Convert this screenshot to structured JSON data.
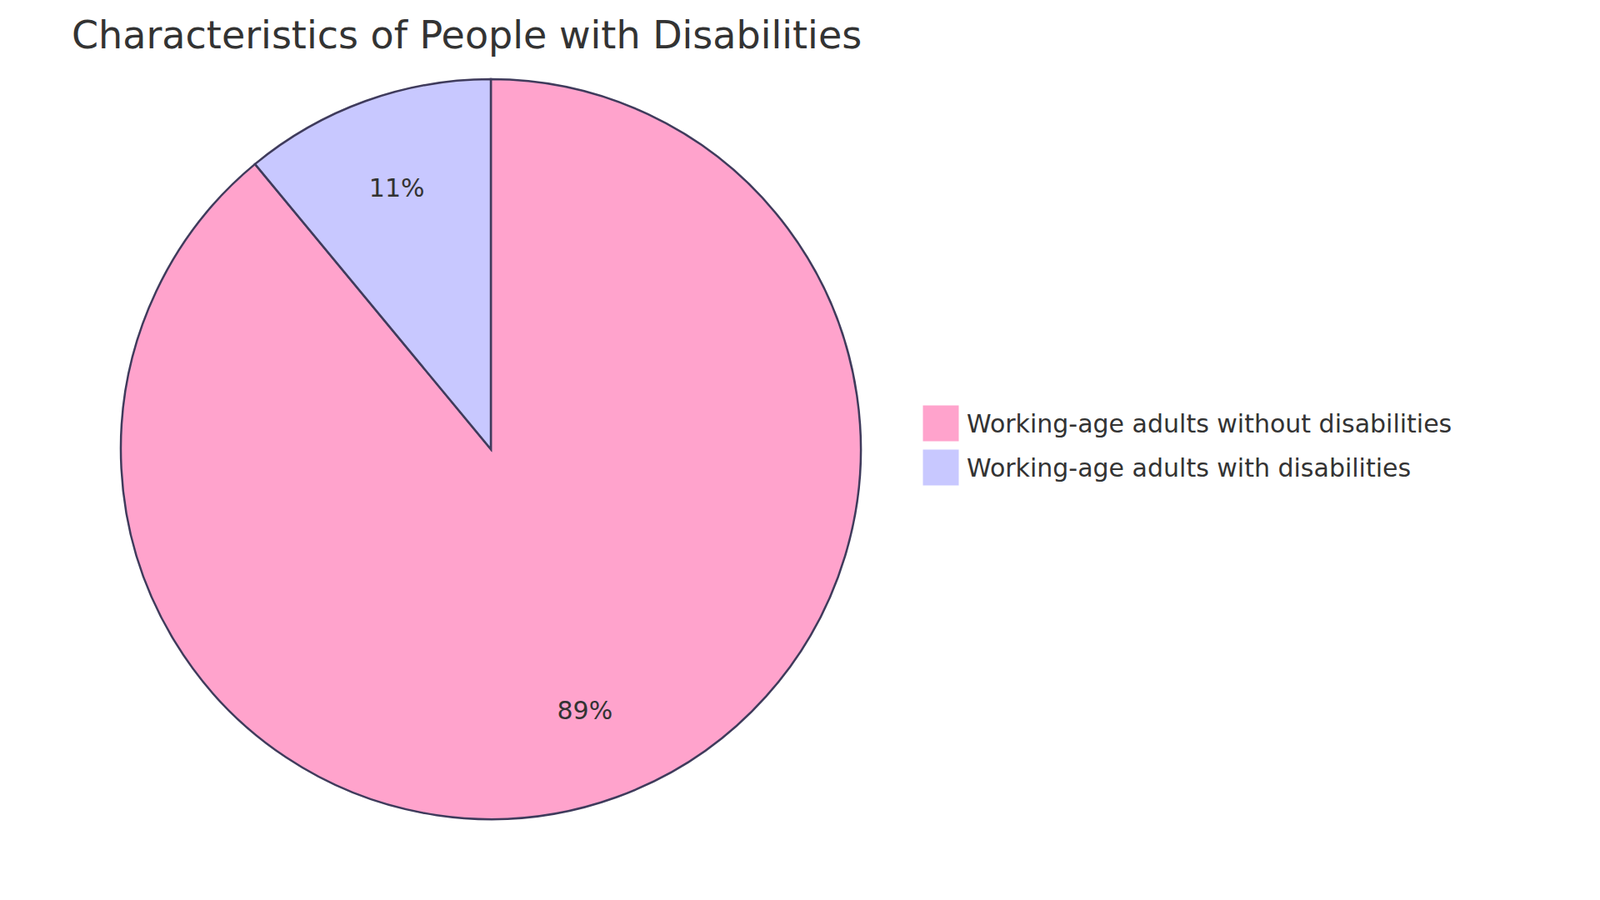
{
  "chart_data": {
    "type": "pie",
    "title": "Characteristics of People with Disabilities",
    "categories": [
      "Working-age adults without disabilities",
      "Working-age adults with disabilities"
    ],
    "values": [
      89,
      11
    ],
    "value_labels": [
      "89%",
      "11%"
    ],
    "colors": [
      "#ffa3cc",
      "#c8c8ff"
    ],
    "data_labels": true,
    "legend": "right"
  }
}
